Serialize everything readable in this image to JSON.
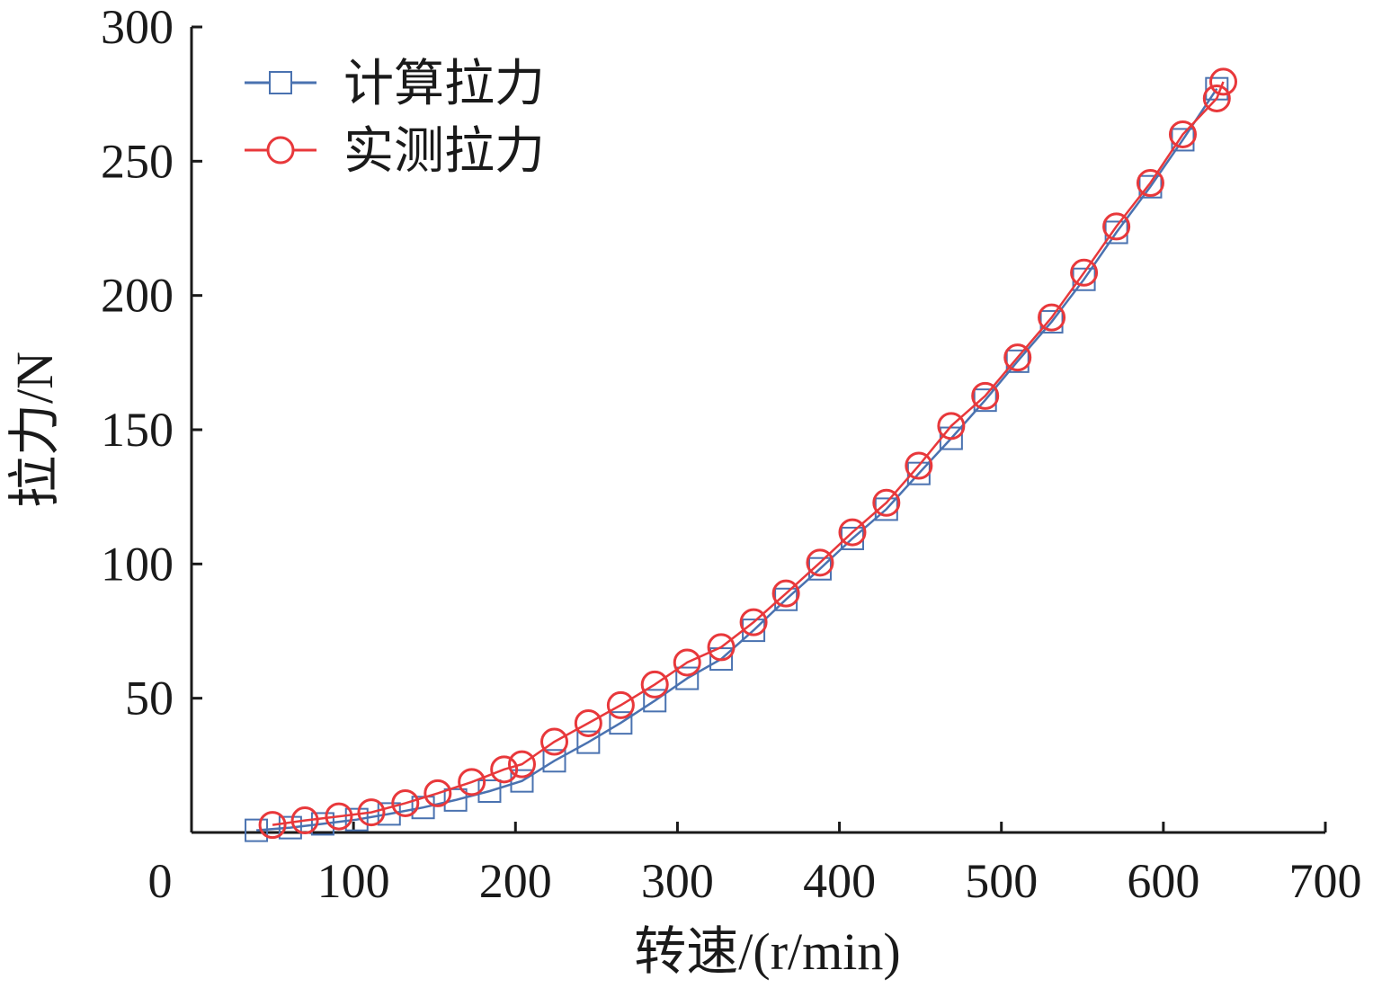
{
  "chart_data": {
    "type": "line",
    "xlabel": "转速/(r/min)",
    "ylabel": "拉力/N",
    "xlim": [
      0,
      700
    ],
    "ylim": [
      0,
      300
    ],
    "xticks": [
      0,
      100,
      200,
      300,
      400,
      500,
      600,
      700
    ],
    "yticks": [
      50,
      100,
      150,
      200,
      250,
      300
    ],
    "grid": false,
    "legend_position": "top-left",
    "series": [
      {
        "name": "计算拉力",
        "marker": "square",
        "color": "#4a72b0",
        "x": [
          40,
          61,
          81,
          102,
          122,
          143,
          163,
          184,
          204,
          224,
          245,
          265,
          286,
          306,
          327,
          347,
          367,
          388,
          408,
          429,
          449,
          469,
          490,
          510,
          531,
          551,
          571,
          592,
          612,
          633
        ],
        "y": [
          0.8,
          1.8,
          3.2,
          4.8,
          6.9,
          9.3,
          12.1,
          15.4,
          19.2,
          26.7,
          33.6,
          40.8,
          49.1,
          57.4,
          64.6,
          75.3,
          86.8,
          98.2,
          109.5,
          120.4,
          133.7,
          146.8,
          161.0,
          175.5,
          190.2,
          206.0,
          223.5,
          240.5,
          258.0,
          277.0
        ]
      },
      {
        "name": "实测拉力",
        "marker": "circle",
        "color": "#e8383b",
        "x": [
          50,
          70,
          91,
          111,
          132,
          152,
          173,
          193,
          204,
          224,
          245,
          265,
          286,
          306,
          327,
          347,
          367,
          388,
          408,
          429,
          449,
          469,
          490,
          510,
          531,
          551,
          571,
          592,
          612,
          633,
          637
        ],
        "y": [
          2.8,
          4.5,
          6.0,
          7.5,
          10.9,
          14.6,
          18.8,
          23.5,
          25.4,
          33.8,
          40.7,
          47.4,
          55.1,
          63.3,
          69.0,
          78.3,
          89.0,
          100.5,
          111.8,
          122.8,
          136.6,
          151.4,
          162.6,
          176.9,
          191.8,
          208.5,
          225.7,
          241.9,
          260.0,
          273.4,
          279.6
        ]
      }
    ]
  }
}
